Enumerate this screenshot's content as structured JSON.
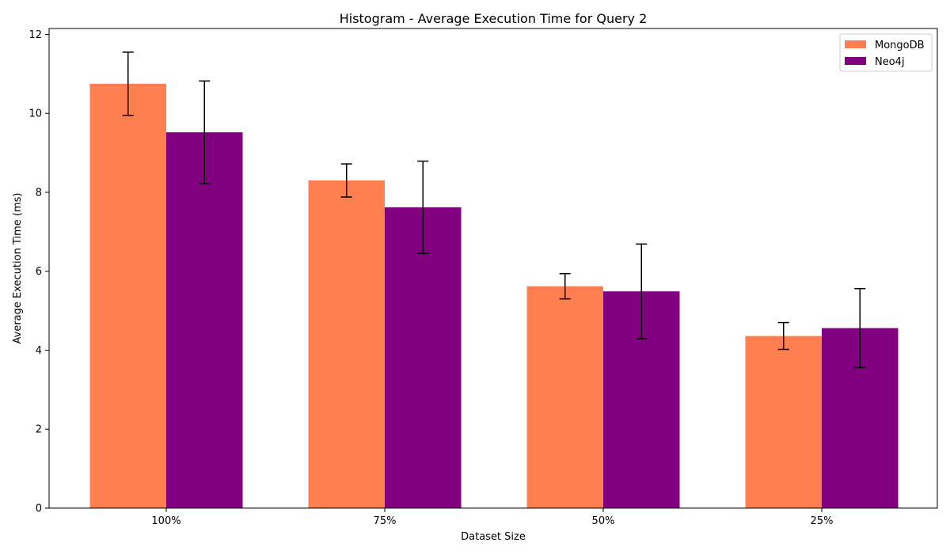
{
  "chart_data": {
    "type": "bar",
    "title": "Histogram - Average Execution Time for Query 2",
    "xlabel": "Dataset Size",
    "ylabel": "Average Execution Time (ms)",
    "categories": [
      "100%",
      "75%",
      "50%",
      "25%"
    ],
    "ylim": [
      0,
      12.15
    ],
    "yticks": [
      0,
      2,
      4,
      6,
      8,
      10,
      12
    ],
    "grid": false,
    "legend_position": "top-right",
    "error_bars": true,
    "series": [
      {
        "name": "MongoDB",
        "color": "#ff7f50",
        "values": [
          10.75,
          8.3,
          5.62,
          4.36
        ],
        "errors": [
          0.8,
          0.42,
          0.32,
          0.34
        ]
      },
      {
        "name": "Neo4j",
        "color": "#800080",
        "values": [
          9.52,
          7.62,
          5.49,
          4.56
        ],
        "errors": [
          1.3,
          1.17,
          1.2,
          1.0
        ]
      }
    ]
  }
}
